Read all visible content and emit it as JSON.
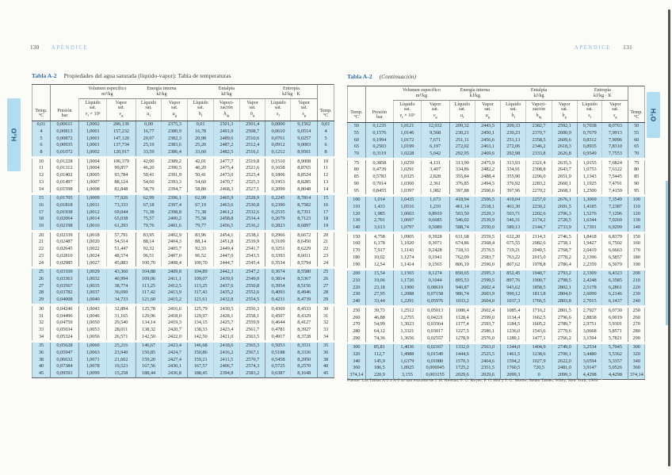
{
  "book": {
    "left": {
      "folio": "130",
      "running_title": "APÉNDICE",
      "caption_label": "Tabla A-2",
      "caption_title": "Propiedades del agua saturada (líquido-vapor): Tabla de temperaturas",
      "tab": "H₂O"
    },
    "right": {
      "folio": "131",
      "running_title": "APÉNDICE",
      "caption_label": "Tabla A-2",
      "caption_title": "(Continuación)",
      "tab": "H₂O",
      "footnote": "Fuente: Las Tablas A-2 a A-5 se han extraído de J. H. Keenan, F. G. Keyes, P. G. Hill y J. G. Moore, Steam Tables, Wiley, New York, 1969."
    }
  },
  "table_header": {
    "temp": {
      "lines": [
        "Temp.",
        "°C"
      ]
    },
    "pressure": {
      "lines": [
        "Presión",
        "bar"
      ]
    },
    "groups": [
      {
        "label": "Volumen específico",
        "unit": "m³/kg",
        "span": 2
      },
      {
        "label": "Energía interna",
        "unit": "kJ/kg",
        "span": 2
      },
      {
        "label": "Entalpía",
        "unit": "kJ/kg",
        "span": 3
      },
      {
        "label": "Entropía",
        "unit": "kJ/kg · K",
        "span": 2
      }
    ],
    "subcols": [
      {
        "lines": [
          "Líquido",
          "sat."
        ],
        "sym": [
          "v",
          "f",
          " × 10³"
        ]
      },
      {
        "lines": [
          "Vapor",
          "sat."
        ],
        "sym": [
          "v",
          "g",
          ""
        ]
      },
      {
        "lines": [
          "Líquido",
          "sat."
        ],
        "sym": [
          "u",
          "f",
          ""
        ]
      },
      {
        "lines": [
          "Vapor",
          "sat."
        ],
        "sym": [
          "u",
          "g",
          ""
        ]
      },
      {
        "lines": [
          "Líquido",
          "sat."
        ],
        "sym": [
          "h",
          "f",
          ""
        ]
      },
      {
        "lines": [
          "Vapori-",
          "zación"
        ],
        "sym": [
          "h",
          "fg",
          ""
        ]
      },
      {
        "lines": [
          "Vapor",
          "sat."
        ],
        "sym": [
          "h",
          "g",
          ""
        ]
      },
      {
        "lines": [
          "Líquido",
          "sat."
        ],
        "sym": [
          "s",
          "f",
          ""
        ]
      },
      {
        "lines": [
          "Vapor",
          "sat."
        ],
        "sym": [
          "s",
          "g",
          ""
        ]
      }
    ]
  },
  "table_left_rows": [
    [
      "0,01",
      "0,00611",
      "1,0002",
      "206,136",
      "0,00",
      "2375,3",
      "0,01",
      "2501,3",
      "2501,4",
      "0,0000",
      "9,1562",
      "0,01"
    ],
    [
      "4",
      "0,00813",
      "1,0001",
      "157,232",
      "16,77",
      "2380,9",
      "16,78",
      "2491,9",
      "2508,7",
      "0,0610",
      "9,0514",
      "4"
    ],
    [
      "5",
      "0,00872",
      "1,0001",
      "147,120",
      "20,97",
      "2382,3",
      "20,98",
      "2489,6",
      "2510,6",
      "0,0761",
      "9,0257",
      "5"
    ],
    [
      "6",
      "0,00935",
      "1,0001",
      "137,734",
      "25,19",
      "2383,6",
      "25,20",
      "2487,2",
      "2512,4",
      "0,0912",
      "9,0003",
      "6"
    ],
    [
      "8",
      "0,01072",
      "1,0002",
      "120,917",
      "33,59",
      "2386,4",
      "33,60",
      "2482,5",
      "2516,1",
      "0,1212",
      "8,9501",
      "8"
    ],
    [
      "10",
      "0,01228",
      "1,0004",
      "106,379",
      "42,00",
      "2389,2",
      "42,01",
      "2477,7",
      "2519,8",
      "0,1510",
      "8,9008",
      "10"
    ],
    [
      "11",
      "0,01312",
      "1,0004",
      "99,857",
      "46,20",
      "2390,5",
      "46,20",
      "2475,4",
      "2521,6",
      "0,1658",
      "8,8765",
      "11"
    ],
    [
      "12",
      "0,01402",
      "1,0005",
      "93,784",
      "50,41",
      "2391,9",
      "50,41",
      "2473,0",
      "2523,4",
      "0,1806",
      "8,8524",
      "12"
    ],
    [
      "13",
      "0,01497",
      "1,0007",
      "88,124",
      "54,60",
      "2393,3",
      "54,60",
      "2470,7",
      "2525,3",
      "0,1953",
      "8,8285",
      "13"
    ],
    [
      "14",
      "0,01598",
      "1,0008",
      "82,848",
      "58,79",
      "2394,7",
      "58,80",
      "2468,3",
      "2527,1",
      "0,2099",
      "8,8048",
      "14"
    ],
    [
      "15",
      "0,01705",
      "1,0009",
      "77,926",
      "62,99",
      "2396,1",
      "62,99",
      "2465,9",
      "2528,9",
      "0,2245",
      "8,7814",
      "15"
    ],
    [
      "16",
      "0,01818",
      "1,0011",
      "73,333",
      "67,18",
      "2397,4",
      "67,19",
      "2463,6",
      "2530,8",
      "0,2390",
      "8,7582",
      "16"
    ],
    [
      "17",
      "0,01938",
      "1,0012",
      "69,044",
      "71,38",
      "2398,8",
      "71,38",
      "2461,2",
      "2532,6",
      "0,2535",
      "8,7351",
      "17"
    ],
    [
      "18",
      "0,02064",
      "1,0014",
      "65,038",
      "75,57",
      "2400,2",
      "75,58",
      "2458,8",
      "2534,4",
      "0,2679",
      "8,7123",
      "18"
    ],
    [
      "19",
      "0,02198",
      "1,0016",
      "61,293",
      "79,76",
      "2401,6",
      "79,77",
      "2456,5",
      "2536,2",
      "0,2823",
      "8,6897",
      "19"
    ],
    [
      "20",
      "0,02339",
      "1,0018",
      "57,791",
      "83,95",
      "2402,9",
      "83,96",
      "2454,1",
      "2538,1",
      "0,2966",
      "8,6672",
      "20"
    ],
    [
      "21",
      "0,02487",
      "1,0020",
      "54,514",
      "88,14",
      "2404,3",
      "88,14",
      "2451,8",
      "2539,9",
      "0,3109",
      "8,6450",
      "21"
    ],
    [
      "22",
      "0,02645",
      "1,0022",
      "51,447",
      "92,32",
      "2405,7",
      "92,33",
      "2449,4",
      "2541,7",
      "0,3251",
      "8,6229",
      "22"
    ],
    [
      "23",
      "0,02810",
      "1,0024",
      "48,574",
      "96,51",
      "2407,0",
      "96,52",
      "2447,0",
      "2543,5",
      "0,3393",
      "8,6011",
      "23"
    ],
    [
      "24",
      "0,02985",
      "1,0027",
      "45,883",
      "100,70",
      "2408,4",
      "100,70",
      "2444,7",
      "2545,4",
      "0,3534",
      "8,5794",
      "24"
    ],
    [
      "25",
      "0,03169",
      "1,0029",
      "43,360",
      "104,88",
      "2409,8",
      "104,89",
      "2442,3",
      "2547,2",
      "0,3674",
      "8,5580",
      "25"
    ],
    [
      "26",
      "0,03363",
      "1,0032",
      "40,994",
      "109,06",
      "2411,1",
      "109,07",
      "2439,9",
      "2549,0",
      "0,3814",
      "8,5367",
      "26"
    ],
    [
      "27",
      "0,03567",
      "1,0035",
      "38,774",
      "113,25",
      "2412,5",
      "113,25",
      "2437,6",
      "2550,8",
      "0,3954",
      "8,5156",
      "27"
    ],
    [
      "28",
      "0,03782",
      "1,0037",
      "36,690",
      "117,42",
      "2413,9",
      "117,43",
      "2435,2",
      "2552,6",
      "0,4093",
      "8,4946",
      "28"
    ],
    [
      "29",
      "0,04008",
      "1,0040",
      "34,733",
      "121,60",
      "2415,2",
      "121,61",
      "2432,8",
      "2554,5",
      "0,4231",
      "8,4739",
      "29"
    ],
    [
      "30",
      "0,04246",
      "1,0043",
      "32,894",
      "125,78",
      "2416,6",
      "125,79",
      "2430,5",
      "2556,3",
      "0,4369",
      "8,4533",
      "30"
    ],
    [
      "31",
      "0,04496",
      "1,0046",
      "31,165",
      "129,96",
      "2418,0",
      "129,97",
      "2428,1",
      "2558,1",
      "0,4507",
      "8,4329",
      "31"
    ],
    [
      "32",
      "0,04759",
      "1,0050",
      "29,540",
      "134,14",
      "2419,3",
      "134,15",
      "2425,7",
      "2559,9",
      "0,4644",
      "8,4127",
      "32"
    ],
    [
      "33",
      "0,05034",
      "1,0053",
      "28,011",
      "138,32",
      "2420,7",
      "138,33",
      "2423,4",
      "2561,7",
      "0,4781",
      "8,3927",
      "33"
    ],
    [
      "34",
      "0,05324",
      "1,0056",
      "26,571",
      "142,50",
      "2422,0",
      "142,50",
      "2421,0",
      "2563,5",
      "0,4917",
      "8,3728",
      "34"
    ],
    [
      "35",
      "0,05628",
      "1,0060",
      "25,216",
      "146,67",
      "2423,4",
      "146,68",
      "2418,6",
      "2565,3",
      "0,5053",
      "8,3531",
      "35"
    ],
    [
      "36",
      "0,05947",
      "1,0063",
      "23,940",
      "150,85",
      "2424,7",
      "150,86",
      "2416,2",
      "2567,1",
      "0,5188",
      "8,3336",
      "36"
    ],
    [
      "38",
      "0,06632",
      "1,0071",
      "21,602",
      "159,20",
      "2427,4",
      "159,21",
      "2411,5",
      "2570,7",
      "0,5458",
      "8,2950",
      "38"
    ],
    [
      "40",
      "0,07384",
      "1,0078",
      "19,523",
      "167,56",
      "2430,1",
      "167,57",
      "2406,7",
      "2574,3",
      "0,5725",
      "8,2570",
      "40"
    ],
    [
      "45",
      "0,09593",
      "1,0099",
      "15,258",
      "188,44",
      "2436,8",
      "188,45",
      "2394,8",
      "2583,2",
      "0,6387",
      "8,1648",
      "45"
    ]
  ],
  "table_right_rows": [
    [
      "50",
      "0,1235",
      "1,0121",
      "12,032",
      "209,32",
      "2443,5",
      "209,33",
      "2382,7",
      "2592,1",
      "0,7038",
      "8,0763",
      "50"
    ],
    [
      "55",
      "0,1576",
      "1,0146",
      "9,568",
      "230,21",
      "2450,1",
      "230,23",
      "2370,7",
      "2600,9",
      "0,7679",
      "7,9913",
      "55"
    ],
    [
      "60",
      "0,1994",
      "1,0172",
      "7,671",
      "251,11",
      "2456,6",
      "251,13",
      "2358,5",
      "2609,6",
      "0,8312",
      "7,9096",
      "60"
    ],
    [
      "65",
      "0,2503",
      "1,0199",
      "6,197",
      "272,02",
      "2463,1",
      "272,06",
      "2346,2",
      "2618,3",
      "0,8935",
      "7,8310",
      "65"
    ],
    [
      "70",
      "0,3119",
      "1,0228",
      "5,042",
      "292,95",
      "2469,6",
      "292,98",
      "2333,8",
      "2626,8",
      "0,9549",
      "7,7553",
      "70"
    ],
    [
      "75",
      "0,3858",
      "1,0259",
      "4,131",
      "313,90",
      "2475,9",
      "313,93",
      "2321,4",
      "2635,3",
      "1,0155",
      "7,6824",
      "75"
    ],
    [
      "80",
      "0,4739",
      "1,0291",
      "3,407",
      "334,86",
      "2482,2",
      "334,91",
      "2308,8",
      "2643,7",
      "1,0753",
      "7,6122",
      "80"
    ],
    [
      "85",
      "0,5783",
      "1,0325",
      "2,828",
      "355,84",
      "2488,4",
      "355,90",
      "2296,0",
      "2651,9",
      "1,1343",
      "7,5445",
      "85"
    ],
    [
      "90",
      "0,7014",
      "1,0360",
      "2,361",
      "376,85",
      "2494,5",
      "376,92",
      "2283,2",
      "2660,1",
      "1,1925",
      "7,4791",
      "90"
    ],
    [
      "95",
      "0,8455",
      "1,0397",
      "1,982",
      "397,88",
      "2500,6",
      "397,96",
      "2270,2",
      "2668,1",
      "1,2500",
      "7,4159",
      "95"
    ],
    [
      "100",
      "1,014",
      "1,0435",
      "1,673",
      "418,94",
      "2506,5",
      "419,04",
      "2257,0",
      "2676,1",
      "1,3069",
      "7,3549",
      "100"
    ],
    [
      "110",
      "1,433",
      "1,0516",
      "1,210",
      "461,14",
      "2518,1",
      "461,30",
      "2230,2",
      "2691,5",
      "1,4185",
      "7,2387",
      "110"
    ],
    [
      "120",
      "1,985",
      "1,0603",
      "0,8919",
      "503,50",
      "2529,3",
      "503,71",
      "2202,6",
      "2706,3",
      "1,5276",
      "7,1296",
      "120"
    ],
    [
      "130",
      "2,701",
      "1,0697",
      "0,6685",
      "546,02",
      "2539,9",
      "546,31",
      "2174,2",
      "2720,5",
      "1,6344",
      "7,0269",
      "130"
    ],
    [
      "140",
      "3,613",
      "1,0797",
      "0,5089",
      "588,74",
      "2550,0",
      "589,13",
      "2144,7",
      "2733,9",
      "1,7391",
      "6,9299",
      "140"
    ],
    [
      "150",
      "4,758",
      "1,0905",
      "0,3928",
      "631,68",
      "2559,5",
      "632,20",
      "2114,3",
      "2746,5",
      "1,8418",
      "6,8379",
      "150"
    ],
    [
      "160",
      "6,178",
      "1,1020",
      "0,3071",
      "674,86",
      "2568,4",
      "675,55",
      "2082,6",
      "2758,1",
      "1,9427",
      "6,7502",
      "160"
    ],
    [
      "170",
      "7,917",
      "1,1143",
      "0,2428",
      "718,33",
      "2576,5",
      "719,21",
      "2049,5",
      "2768,7",
      "2,0419",
      "6,6663",
      "170"
    ],
    [
      "180",
      "10,02",
      "1,1274",
      "0,1941",
      "762,09",
      "2583,7",
      "763,22",
      "2015,0",
      "2778,2",
      "2,1396",
      "6,5857",
      "180"
    ],
    [
      "190",
      "12,54",
      "1,1414",
      "0,1565",
      "806,19",
      "2590,0",
      "807,62",
      "1978,8",
      "2786,4",
      "2,2359",
      "6,5079",
      "190"
    ],
    [
      "200",
      "15,54",
      "1,1565",
      "0,1274",
      "850,65",
      "2595,3",
      "852,45",
      "1940,7",
      "2793,2",
      "2,3309",
      "6,4323",
      "200"
    ],
    [
      "210",
      "19,06",
      "1,1726",
      "0,1044",
      "895,53",
      "2599,5",
      "897,76",
      "1900,7",
      "2798,5",
      "2,4248",
      "6,3585",
      "210"
    ],
    [
      "220",
      "23,18",
      "1,1900",
      "0,08619",
      "940,87",
      "2602,4",
      "943,62",
      "1858,5",
      "2802,1",
      "2,5178",
      "6,2861",
      "220"
    ],
    [
      "230",
      "27,95",
      "1,2088",
      "0,07158",
      "986,74",
      "2603,9",
      "990,12",
      "1813,8",
      "2804,0",
      "2,6099",
      "6,2146",
      "230"
    ],
    [
      "240",
      "33,44",
      "1,2291",
      "0,05976",
      "1033,2",
      "2604,0",
      "1037,3",
      "1766,5",
      "2803,8",
      "2,7015",
      "6,1437",
      "240"
    ],
    [
      "250",
      "39,73",
      "1,2512",
      "0,05013",
      "1080,4",
      "2602,4",
      "1085,4",
      "1716,2",
      "2801,5",
      "2,7927",
      "6,0730",
      "250"
    ],
    [
      "260",
      "46,88",
      "1,2755",
      "0,04221",
      "1128,4",
      "2599,0",
      "1134,4",
      "1662,5",
      "2796,6",
      "2,8838",
      "6,0019",
      "260"
    ],
    [
      "270",
      "54,99",
      "1,3023",
      "0,03564",
      "1177,4",
      "2593,7",
      "1184,5",
      "1605,2",
      "2789,7",
      "2,9751",
      "5,9301",
      "270"
    ],
    [
      "280",
      "64,12",
      "1,3321",
      "0,03017",
      "1227,5",
      "2586,1",
      "1236,0",
      "1543,6",
      "2779,6",
      "3,0668",
      "5,8571",
      "280"
    ],
    [
      "290",
      "74,36",
      "1,3656",
      "0,02557",
      "1278,9",
      "2576,0",
      "1289,1",
      "1477,1",
      "2766,2",
      "3,1594",
      "5,7821",
      "290"
    ],
    [
      "300",
      "85,81",
      "1,4036",
      "0,02167",
      "1332,0",
      "2563,0",
      "1344,0",
      "1404,9",
      "2749,0",
      "3,2534",
      "5,7045",
      "300"
    ],
    [
      "320",
      "112,7",
      "1,4988",
      "0,01549",
      "1444,6",
      "2525,5",
      "1461,5",
      "1238,6",
      "2700,1",
      "3,4480",
      "5,5362",
      "320"
    ],
    [
      "340",
      "145,9",
      "1,6379",
      "0,01080",
      "1570,3",
      "2464,6",
      "1594,2",
      "1027,9",
      "2622,0",
      "3,6594",
      "5,3357",
      "340"
    ],
    [
      "360",
      "186,5",
      "1,8925",
      "0,006945",
      "1725,2",
      "2351,5",
      "1760,5",
      "720,5",
      "2481,0",
      "3,9147",
      "5,0526",
      "360"
    ],
    [
      "374,14",
      "220,9",
      "3,155",
      "0,003155",
      "2029,6",
      "2029,6",
      "2099,3",
      "0",
      "2099,3",
      "4,4298",
      "4,4298",
      "374,14"
    ]
  ]
}
